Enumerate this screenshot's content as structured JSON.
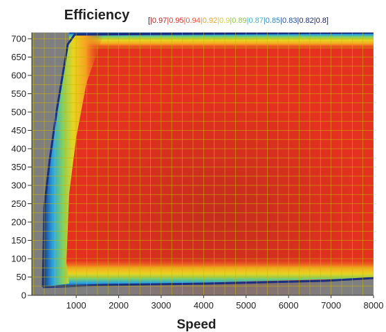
{
  "chart_data": {
    "type": "heatmap",
    "title": "Efficiency",
    "xlabel": "Speed",
    "ylabel": "",
    "xlim": [
      0,
      8000
    ],
    "ylim": [
      0,
      720
    ],
    "x_ticks": [
      1000,
      2000,
      3000,
      4000,
      5000,
      6000,
      7000,
      8000
    ],
    "y_ticks": [
      0,
      50,
      100,
      150,
      200,
      250,
      300,
      350,
      400,
      450,
      500,
      550,
      600,
      650,
      700
    ],
    "grid": true,
    "legend_position": "top-right",
    "legend_prefix": "[",
    "legend": [
      {
        "label": "|0.97",
        "color": "#b22222"
      },
      {
        "label": "|0.95",
        "color": "#e03020"
      },
      {
        "label": "|0.94",
        "color": "#f05030"
      },
      {
        "label": "|0.92",
        "color": "#f0a020"
      },
      {
        "label": "|0.9",
        "color": "#d8d020"
      },
      {
        "label": "|0.89",
        "color": "#8cc63f"
      },
      {
        "label": "|0.87",
        "color": "#3cb4c8"
      },
      {
        "label": "|0.85",
        "color": "#2a8ad0"
      },
      {
        "label": "|0.83",
        "color": "#2050a8"
      },
      {
        "label": "|0.82",
        "color": "#1a2f80"
      },
      {
        "label": "|0.8]",
        "color": "#1a2070"
      }
    ],
    "background_color": "#808080",
    "grid_color": "#c8b800"
  }
}
